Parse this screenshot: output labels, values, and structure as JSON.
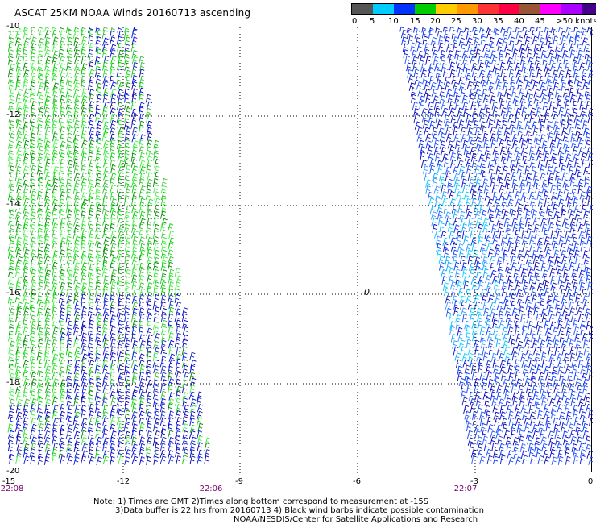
{
  "title": "ASCAT 25KM NOAA Winds 20160713 ascending",
  "scale": {
    "colors": [
      "#555555",
      "#00ccff",
      "#0033ff",
      "#00cc00",
      "#ffcc00",
      "#ff9900",
      "#ff3333",
      "#ff0044",
      "#995533",
      "#ff00ff",
      "#aa00ff",
      "#440088"
    ],
    "labels": [
      "0",
      "5",
      "10",
      "15",
      "20",
      "25",
      "30",
      "35",
      "40",
      "45",
      ">50 knots"
    ]
  },
  "axes": {
    "y_labels": [
      "-10",
      "-12",
      "-14",
      "-16",
      "-18",
      "-20"
    ],
    "x_labels": [
      "-15",
      "-12",
      "-9",
      "-6",
      "-3",
      "0"
    ]
  },
  "times": [
    "22:08",
    "22:06",
    "22:07"
  ],
  "center_mark": "0",
  "notes": {
    "line1": "Note: 1) Times are GMT 2)Times along bottom correspond to measurement at -15S",
    "line2": "3)Data buffer is 22 hrs from 20160713 4) Black wind barbs indicate possible contamination",
    "line3": "NOAA/NESDIS/Center for Satellite Applications and Research"
  }
}
